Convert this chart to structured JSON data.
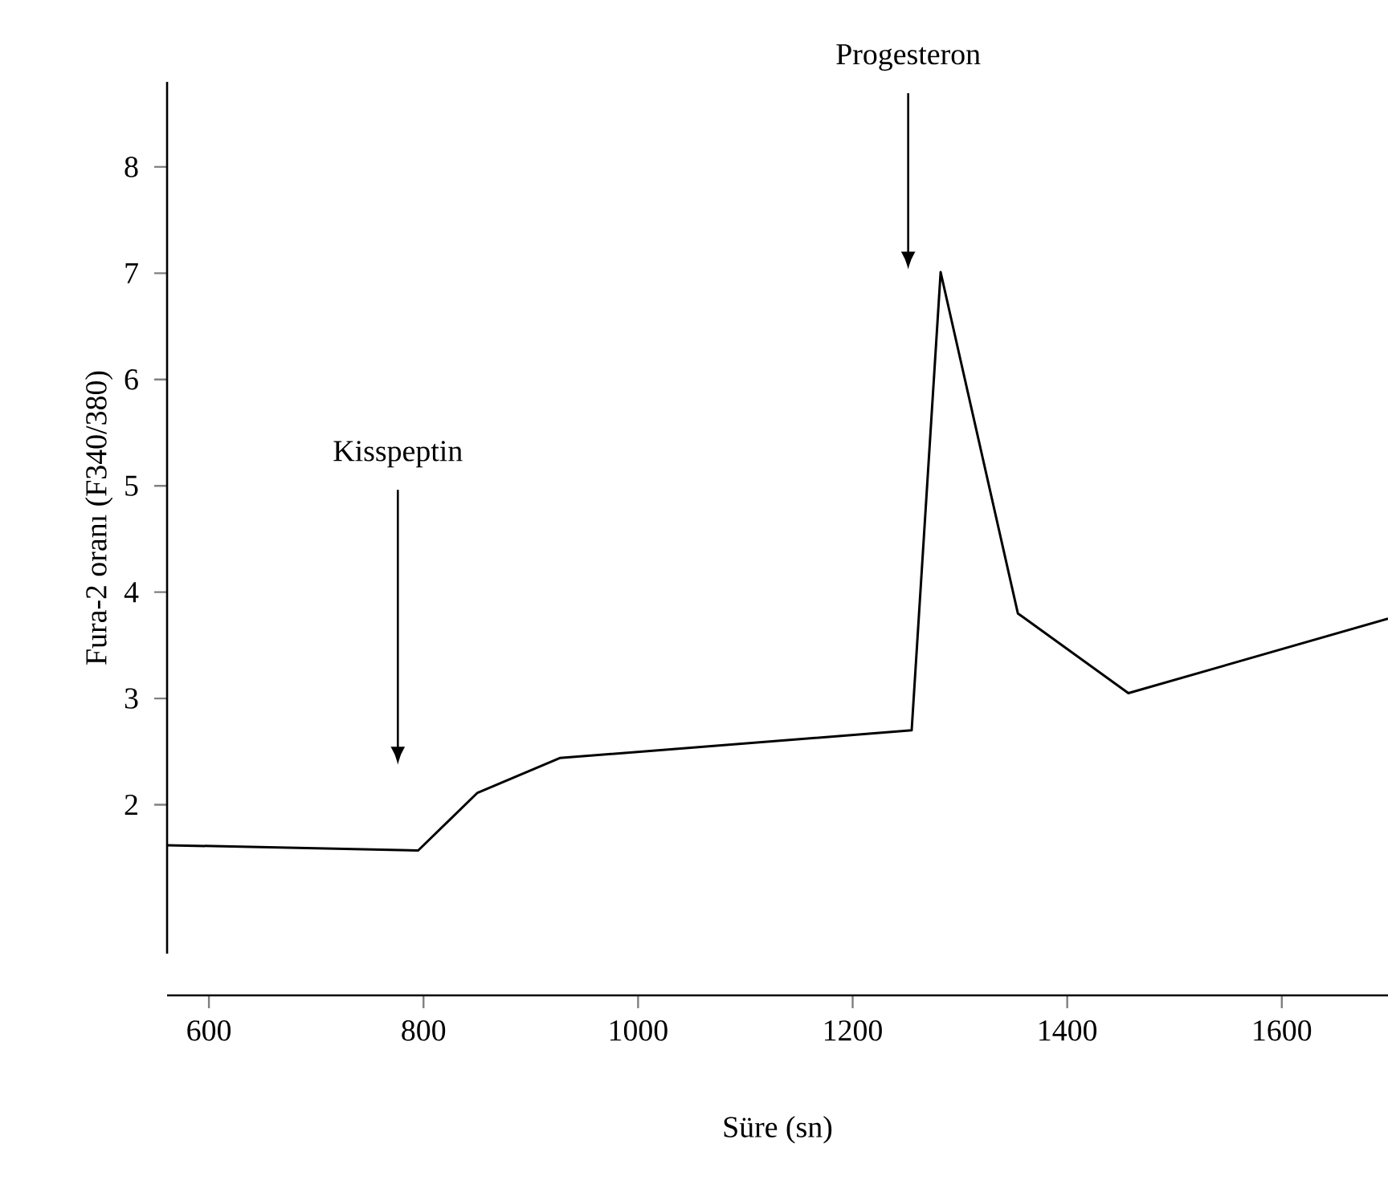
{
  "chart_data": {
    "type": "line",
    "xlabel": "Süre (sn)",
    "ylabel": "Fura-2 oranı (F340/380)",
    "x": [
      561,
      795,
      850,
      927,
      1255,
      1282,
      1354,
      1457,
      1699
    ],
    "values": [
      1.62,
      1.57,
      2.11,
      2.44,
      2.7,
      7.01,
      3.8,
      3.05,
      3.75
    ],
    "color": "#000000",
    "xlim": [
      561,
      1699
    ],
    "ylim": [
      0.6,
      8.8
    ],
    "xticks": [
      600,
      800,
      1000,
      1200,
      1400,
      1600
    ],
    "yticks": [
      2,
      3,
      4,
      5,
      6,
      7,
      8
    ],
    "grid": false,
    "marker": "none",
    "line_style": "solid",
    "annotations": [
      "Kisspeptin",
      "Progesteron"
    ]
  }
}
